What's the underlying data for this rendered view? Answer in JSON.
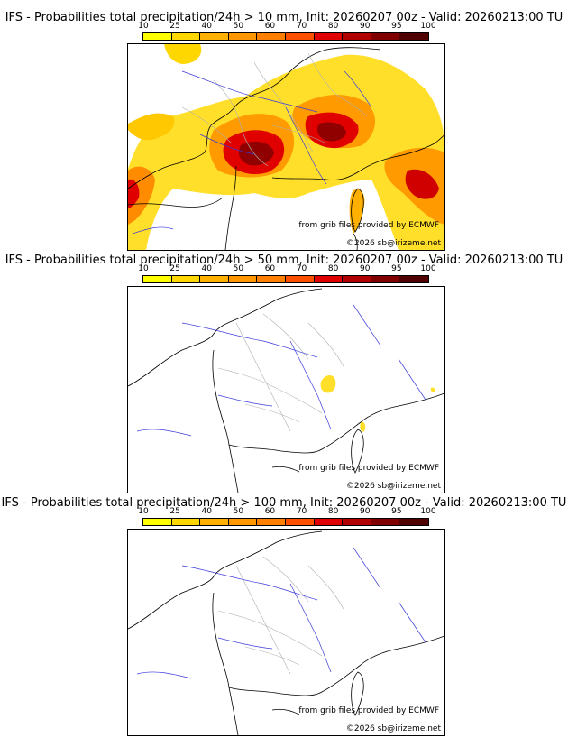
{
  "colorscale": {
    "labels": [
      "10",
      "25",
      "40",
      "50",
      "60",
      "70",
      "80",
      "90",
      "95",
      "100"
    ],
    "colors": [
      "#ffff00",
      "#ffd700",
      "#ffb000",
      "#ff9800",
      "#ff7f00",
      "#ff5000",
      "#e00000",
      "#b00000",
      "#800000",
      "#500000"
    ]
  },
  "colors": {
    "land_border": "#000000",
    "region_border": "#b0b0b0",
    "river": "#3a3adc"
  },
  "panels": [
    {
      "id": "p10",
      "title": "IFS - Probabilities total precipitation/24h > 10 mm, Init: 20260207 00z - Valid: 20260213:00 TU",
      "source_credit": "from grib files provided by ECMWF",
      "copyright": "©2026 sb@irizeme.net"
    },
    {
      "id": "p50",
      "title": "IFS - Probabilities total precipitation/24h > 50 mm, Init: 20260207 00z - Valid: 20260213:00 TU",
      "source_credit": "from grib files provided by ECMWF",
      "copyright": "©2026 sb@irizeme.net"
    },
    {
      "id": "p100",
      "title": "IFS - Probabilities total precipitation/24h > 100 mm, Init: 20260207 00z - Valid: 20260213:00 TU",
      "source_credit": "from grib files provided by ECMWF",
      "copyright": "©2026 sb@irizeme.net"
    }
  ]
}
